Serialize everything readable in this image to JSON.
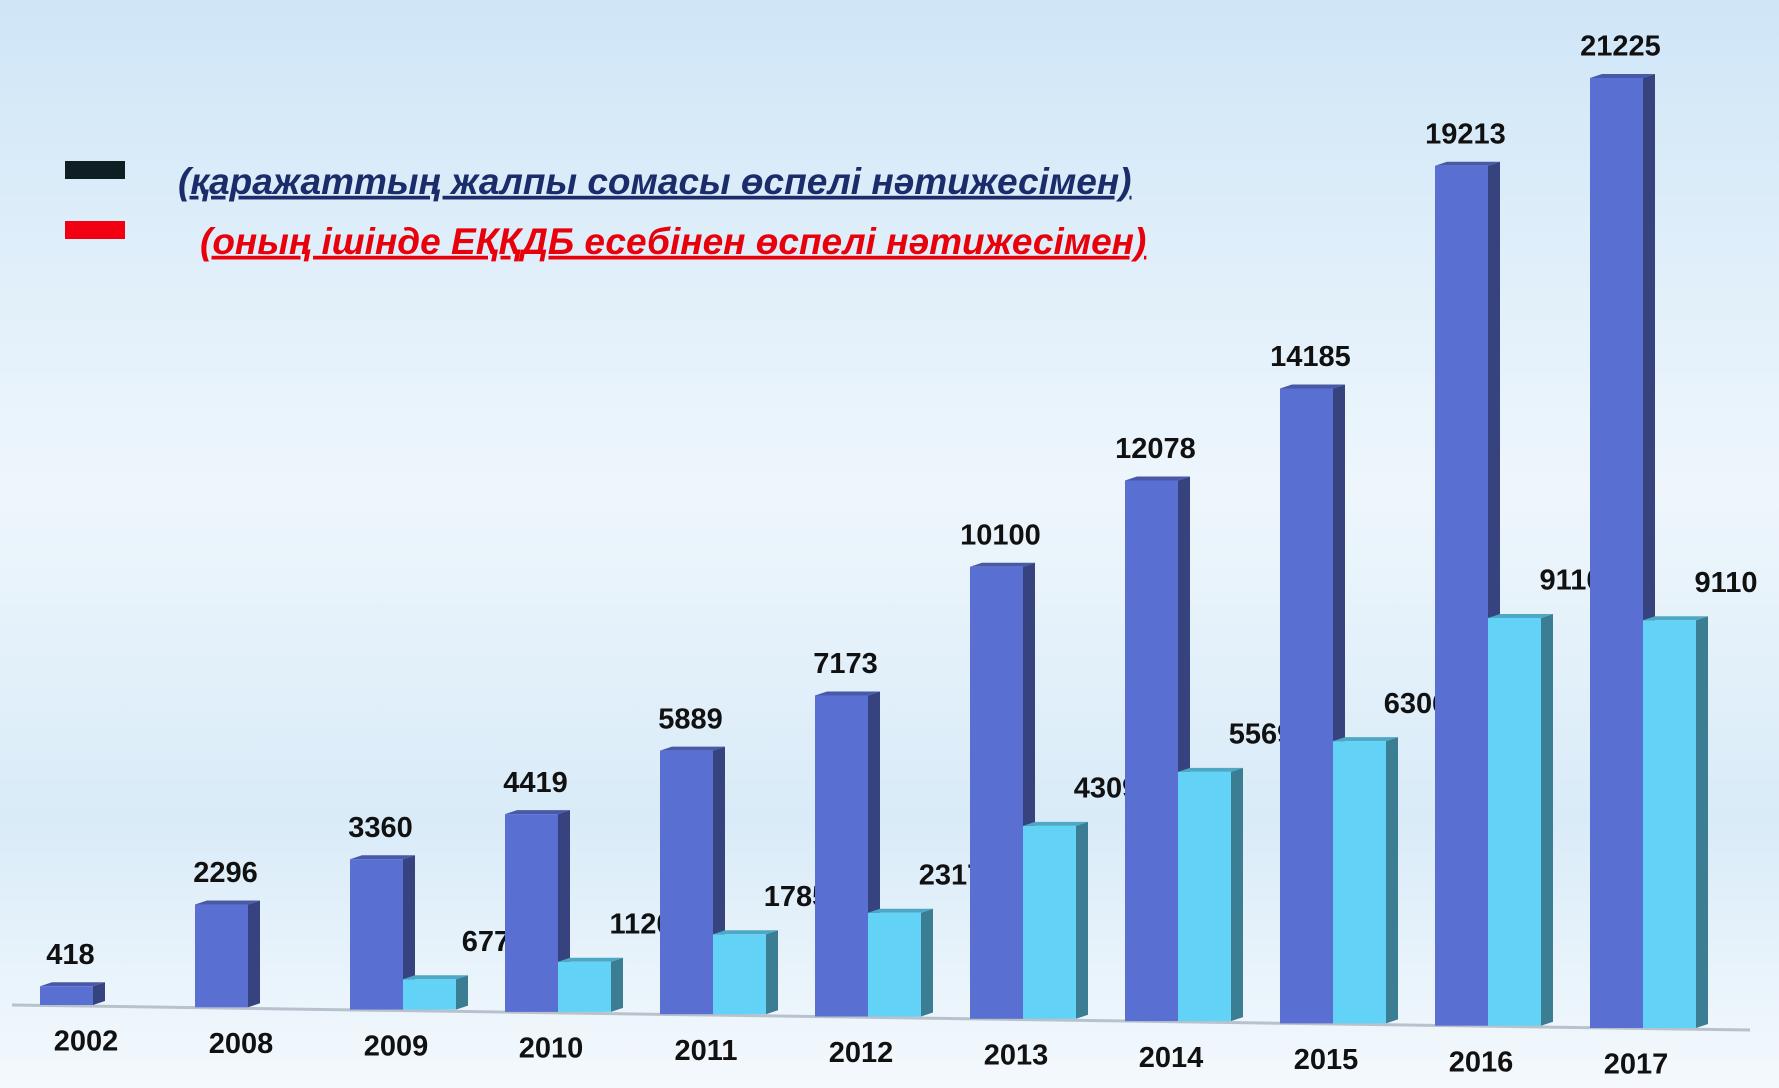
{
  "chart_data": {
    "type": "bar3d",
    "categories": [
      "2002",
      "2008",
      "2009",
      "2010",
      "2011",
      "2012",
      "2013",
      "2014",
      "2015",
      "2016",
      "2017"
    ],
    "series": [
      {
        "name": "(қаражаттың жалпы сомасы өспелі нәтижесімен)",
        "color": "#5a6fd2",
        "legend_color": "#0f1e22",
        "text_color": "#1b2c6b",
        "values": [
          418,
          2296,
          3360,
          4419,
          5889,
          7173,
          10100,
          12078,
          14185,
          19213,
          21225
        ]
      },
      {
        "name": "(оның ішінде ЕҚҚДБ есебінен өспелі нәтижесімен)",
        "color": "#62d2f6",
        "legend_color": "#f00010",
        "text_color": "#e8000b",
        "values": [
          null,
          null,
          677,
          1120,
          1785,
          2317,
          4309,
          5569,
          6306,
          9110,
          9110
        ]
      }
    ]
  }
}
